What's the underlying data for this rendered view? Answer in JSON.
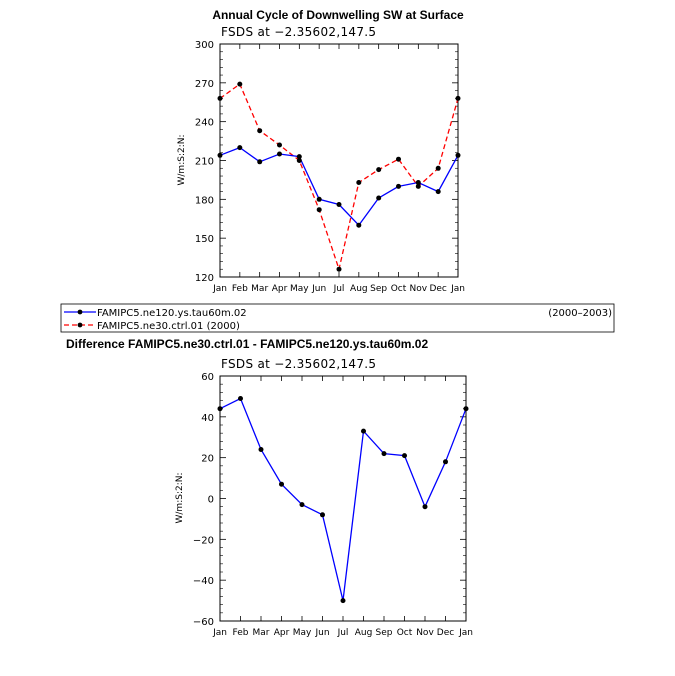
{
  "chart_data": [
    {
      "type": "line",
      "title": "Annual Cycle of Downwelling SW at Surface",
      "subtitle": "FSDS at −2.35602,147.5",
      "xlabel": "",
      "ylabel": "W/m:S:2:N:",
      "categories": [
        "Jan",
        "Feb",
        "Mar",
        "Apr",
        "May",
        "Jun",
        "Jul",
        "Aug",
        "Sep",
        "Oct",
        "Nov",
        "Dec",
        "Jan"
      ],
      "ylim": [
        120,
        300
      ],
      "yticks": [
        "120",
        "150",
        "180",
        "210",
        "240",
        "270",
        "300"
      ],
      "series": [
        {
          "name": "FAMIPC5.ne120.ys.tau60m.02",
          "period": "(2000–2003)",
          "color": "#0000ff",
          "dash": "solid",
          "values": [
            214,
            220,
            209,
            215,
            213,
            180,
            176,
            160,
            181,
            190,
            193,
            186,
            214
          ]
        },
        {
          "name": "FAMIPC5.ne30.ctrl.01 (2000)",
          "period": "",
          "color": "#ff0000",
          "dash": "dashed",
          "values": [
            258,
            269,
            233,
            222,
            210,
            172,
            126,
            193,
            203,
            211,
            190,
            204,
            258
          ]
        }
      ]
    },
    {
      "type": "line",
      "title": "Difference FAMIPC5.ne30.ctrl.01 - FAMIPC5.ne120.ys.tau60m.02",
      "subtitle": "FSDS at −2.35602,147.5",
      "xlabel": "",
      "ylabel": "W/m:S:2:N:",
      "categories": [
        "Jan",
        "Feb",
        "Mar",
        "Apr",
        "May",
        "Jun",
        "Jul",
        "Aug",
        "Sep",
        "Oct",
        "Nov",
        "Dec",
        "Jan"
      ],
      "ylim": [
        -60,
        60
      ],
      "yticks": [
        "−60",
        "−40",
        "−20",
        "0",
        "20",
        "40",
        "60"
      ],
      "series": [
        {
          "name": "Difference",
          "color": "#0000ff",
          "dash": "solid",
          "values": [
            44,
            49,
            24,
            7,
            -3,
            -8,
            -50,
            33,
            22,
            21,
            -4,
            18,
            44
          ]
        }
      ]
    }
  ]
}
